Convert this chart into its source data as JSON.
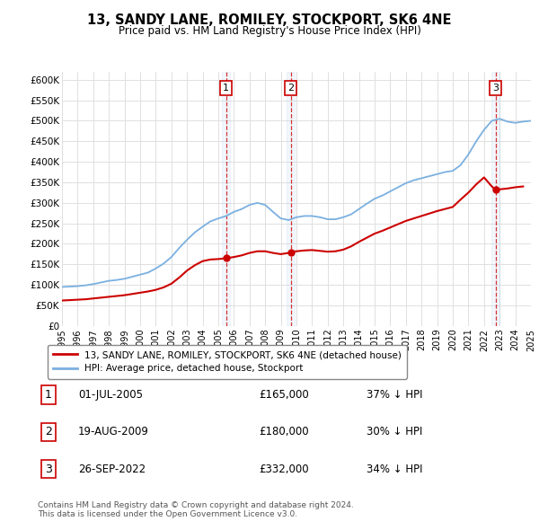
{
  "title": "13, SANDY LANE, ROMILEY, STOCKPORT, SK6 4NE",
  "subtitle": "Price paid vs. HM Land Registry's House Price Index (HPI)",
  "hpi_color": "#7ab0e0",
  "price_color": "#cc0000",
  "background_color": "#ffffff",
  "grid_color": "#e0e0e0",
  "ylim": [
    0,
    620000
  ],
  "yticks": [
    0,
    50000,
    100000,
    150000,
    200000,
    250000,
    300000,
    350000,
    400000,
    450000,
    500000,
    550000,
    600000
  ],
  "ytick_labels": [
    "£0",
    "£50K",
    "£100K",
    "£150K",
    "£200K",
    "£250K",
    "£300K",
    "£350K",
    "£400K",
    "£450K",
    "£500K",
    "£550K",
    "£600K"
  ],
  "xmin": 1995,
  "xmax": 2025,
  "sale1_x": 2005.5,
  "sale1_y": 165000,
  "sale1_label": "1",
  "sale1_date": "01-JUL-2005",
  "sale1_price": "£165,000",
  "sale1_pct": "37% ↓ HPI",
  "sale2_x": 2009.63,
  "sale2_y": 180000,
  "sale2_label": "2",
  "sale2_date": "19-AUG-2009",
  "sale2_price": "£180,000",
  "sale2_pct": "30% ↓ HPI",
  "sale3_x": 2022.73,
  "sale3_y": 332000,
  "sale3_label": "3",
  "sale3_date": "26-SEP-2022",
  "sale3_price": "£332,000",
  "sale3_pct": "34% ↓ HPI",
  "legend_label_price": "13, SANDY LANE, ROMILEY, STOCKPORT, SK6 4NE (detached house)",
  "legend_label_hpi": "HPI: Average price, detached house, Stockport",
  "footnote": "Contains HM Land Registry data © Crown copyright and database right 2024.\nThis data is licensed under the Open Government Licence v3.0."
}
